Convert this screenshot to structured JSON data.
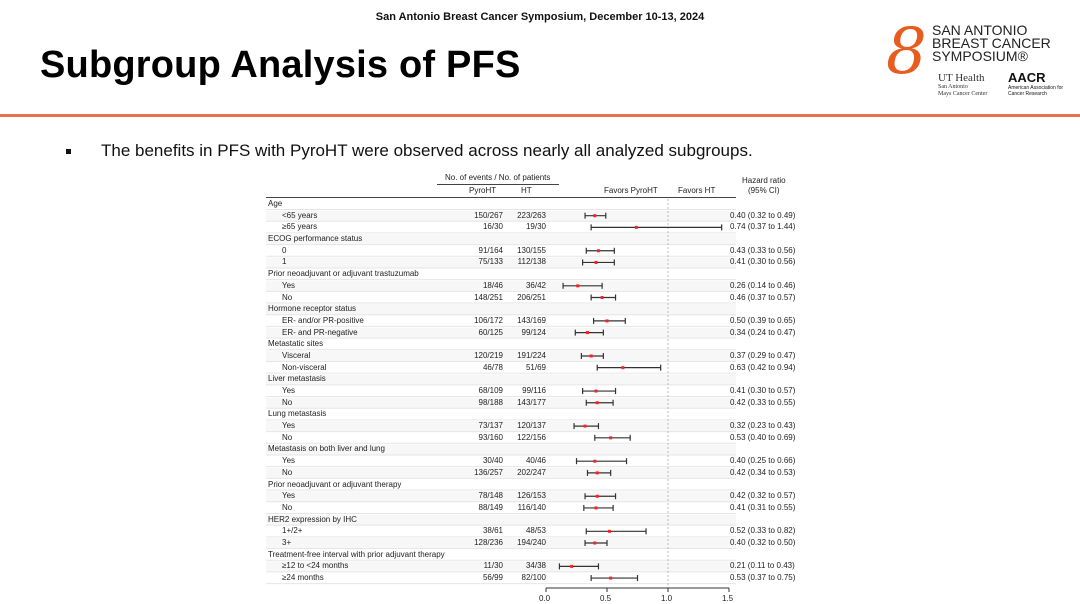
{
  "header": {
    "conference": "San Antonio Breast Cancer Symposium, December 10-13, 2024",
    "title": "Subgroup Analysis of PFS"
  },
  "logo": {
    "line1": "SAN ANTONIO",
    "line2": "BREAST CANCER",
    "line3": "SYMPOSIUM®",
    "ut": "UT Health",
    "ut_sub1": "San Antonio",
    "ut_sub2": "Mays Cancer Center",
    "aacr": "AACR",
    "aacr_sub": "American Association for Cancer Research"
  },
  "bullet": "The benefits in PFS with PyroHT were observed across nearly all analyzed subgroups.",
  "chart_data": {
    "type": "forest",
    "col_header_events": "No. of events / No. of patients",
    "col_pyro": "PyroHT",
    "col_ht": "HT",
    "favors_left": "Favors PyroHT",
    "favors_right": "Favors HT",
    "hr_header1": "Hazard ratio",
    "hr_header2": "(95% CI)",
    "xlim": [
      0,
      1.5
    ],
    "xticks": [
      "0.0",
      "0.5",
      "1.0",
      "1.5"
    ],
    "reference": 1.0,
    "colors": {
      "point": "#ff2020",
      "ci": "#333333",
      "band": "#eeeeee"
    },
    "rows": [
      {
        "label": "Age",
        "group": true
      },
      {
        "label": "<65 years",
        "pyro": "150/267",
        "ht": "223/263",
        "hr": 0.4,
        "lo": 0.32,
        "hi": 0.49,
        "ci": "0.40 (0.32 to 0.49)"
      },
      {
        "label": "≥65 years",
        "pyro": "16/30",
        "ht": "19/30",
        "hr": 0.74,
        "lo": 0.37,
        "hi": 1.44,
        "ci": "0.74 (0.37 to 1.44)"
      },
      {
        "label": "ECOG performance status",
        "group": true
      },
      {
        "label": "0",
        "pyro": "91/164",
        "ht": "130/155",
        "hr": 0.43,
        "lo": 0.33,
        "hi": 0.56,
        "ci": "0.43 (0.33 to 0.56)"
      },
      {
        "label": "1",
        "pyro": "75/133",
        "ht": "112/138",
        "hr": 0.41,
        "lo": 0.3,
        "hi": 0.56,
        "ci": "0.41 (0.30 to 0.56)"
      },
      {
        "label": "Prior neoadjuvant or adjuvant trastuzumab",
        "group": true
      },
      {
        "label": "Yes",
        "pyro": "18/46",
        "ht": "36/42",
        "hr": 0.26,
        "lo": 0.14,
        "hi": 0.46,
        "ci": "0.26 (0.14 to 0.46)"
      },
      {
        "label": "No",
        "pyro": "148/251",
        "ht": "206/251",
        "hr": 0.46,
        "lo": 0.37,
        "hi": 0.57,
        "ci": "0.46 (0.37 to 0.57)"
      },
      {
        "label": "Hormone receptor status",
        "group": true
      },
      {
        "label": "ER- and/or PR-positive",
        "pyro": "106/172",
        "ht": "143/169",
        "hr": 0.5,
        "lo": 0.39,
        "hi": 0.65,
        "ci": "0.50 (0.39 to 0.65)"
      },
      {
        "label": "ER- and PR-negative",
        "pyro": "60/125",
        "ht": "99/124",
        "hr": 0.34,
        "lo": 0.24,
        "hi": 0.47,
        "ci": "0.34 (0.24 to 0.47)"
      },
      {
        "label": "Metastatic sites",
        "group": true
      },
      {
        "label": "Visceral",
        "pyro": "120/219",
        "ht": "191/224",
        "hr": 0.37,
        "lo": 0.29,
        "hi": 0.47,
        "ci": "0.37 (0.29 to 0.47)"
      },
      {
        "label": "Non-visceral",
        "pyro": "46/78",
        "ht": "51/69",
        "hr": 0.63,
        "lo": 0.42,
        "hi": 0.94,
        "ci": "0.63 (0.42 to 0.94)"
      },
      {
        "label": "Liver metastasis",
        "group": true
      },
      {
        "label": "Yes",
        "pyro": "68/109",
        "ht": "99/116",
        "hr": 0.41,
        "lo": 0.3,
        "hi": 0.57,
        "ci": "0.41 (0.30 to 0.57)"
      },
      {
        "label": "No",
        "pyro": "98/188",
        "ht": "143/177",
        "hr": 0.42,
        "lo": 0.33,
        "hi": 0.55,
        "ci": "0.42 (0.33 to 0.55)"
      },
      {
        "label": "Lung metastasis",
        "group": true
      },
      {
        "label": "Yes",
        "pyro": "73/137",
        "ht": "120/137",
        "hr": 0.32,
        "lo": 0.23,
        "hi": 0.43,
        "ci": "0.32 (0.23 to 0.43)"
      },
      {
        "label": "No",
        "pyro": "93/160",
        "ht": "122/156",
        "hr": 0.53,
        "lo": 0.4,
        "hi": 0.69,
        "ci": "0.53 (0.40 to 0.69)"
      },
      {
        "label": "Metastasis on both liver and lung",
        "group": true
      },
      {
        "label": "Yes",
        "pyro": "30/40",
        "ht": "40/46",
        "hr": 0.4,
        "lo": 0.25,
        "hi": 0.66,
        "ci": "0.40 (0.25 to 0.66)"
      },
      {
        "label": "No",
        "pyro": "136/257",
        "ht": "202/247",
        "hr": 0.42,
        "lo": 0.34,
        "hi": 0.53,
        "ci": "0.42 (0.34 to 0.53)"
      },
      {
        "label": "Prior neoadjuvant or adjuvant therapy",
        "group": true
      },
      {
        "label": "Yes",
        "pyro": "78/148",
        "ht": "126/153",
        "hr": 0.42,
        "lo": 0.32,
        "hi": 0.57,
        "ci": "0.42 (0.32 to 0.57)"
      },
      {
        "label": "No",
        "pyro": "88/149",
        "ht": "116/140",
        "hr": 0.41,
        "lo": 0.31,
        "hi": 0.55,
        "ci": "0.41 (0.31 to 0.55)"
      },
      {
        "label": "HER2 expression by IHC",
        "group": true
      },
      {
        "label": "1+/2+",
        "pyro": "38/61",
        "ht": "48/53",
        "hr": 0.52,
        "lo": 0.33,
        "hi": 0.82,
        "ci": "0.52 (0.33 to 0.82)"
      },
      {
        "label": "3+",
        "pyro": "128/236",
        "ht": "194/240",
        "hr": 0.4,
        "lo": 0.32,
        "hi": 0.5,
        "ci": "0.40 (0.32 to 0.50)"
      },
      {
        "label": "Treatment-free interval with prior adjuvant therapy",
        "group": true
      },
      {
        "label": "≥12  to  <24 months",
        "pyro": "11/30",
        "ht": "34/38",
        "hr": 0.21,
        "lo": 0.11,
        "hi": 0.43,
        "ci": "0.21 (0.11 to 0.43)"
      },
      {
        "label": "≥24 months",
        "pyro": "56/99",
        "ht": "82/100",
        "hr": 0.53,
        "lo": 0.37,
        "hi": 0.75,
        "ci": "0.53 (0.37 to 0.75)"
      }
    ]
  }
}
